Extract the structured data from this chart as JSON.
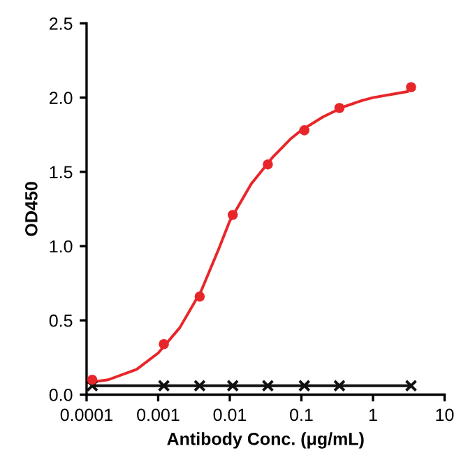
{
  "chart_data": {
    "type": "scatter",
    "xlabel": "Antibody Conc. (μg/mL)",
    "ylabel": "OD450",
    "log": "x",
    "xlim": [
      0.0001,
      10
    ],
    "xticks": [
      0.0001,
      0.001,
      0.01,
      0.1,
      1,
      10
    ],
    "ylim": [
      0,
      2.5
    ],
    "yticks": [
      {
        "value": 0,
        "label": "0.0"
      },
      0.5,
      {
        "value": 1,
        "label": "1.0"
      },
      1.5,
      {
        "value": 2,
        "label": "2.0"
      },
      2.5
    ],
    "grid": false,
    "legend": false,
    "series": [
      {
        "type": "line",
        "color": "#e8262a",
        "marker": "none",
        "x": [
          0.0001,
          0.0002,
          0.0005,
          0.001,
          0.002,
          0.004,
          0.007,
          0.01,
          0.02,
          0.04,
          0.07,
          0.1,
          0.2,
          0.4,
          0.7,
          1,
          3
        ],
        "values": [
          0.08,
          0.1,
          0.17,
          0.28,
          0.45,
          0.7,
          0.98,
          1.17,
          1.42,
          1.6,
          1.72,
          1.78,
          1.87,
          1.94,
          1.98,
          2.0,
          2.04
        ]
      },
      {
        "color": "#e8262a",
        "marker": "circle",
        "x": [
          0.00012,
          0.0012,
          0.0038,
          0.011,
          0.034,
          0.11,
          0.34,
          3.4
        ],
        "values": [
          0.1,
          0.34,
          0.66,
          1.21,
          1.55,
          1.78,
          1.93,
          2.07
        ]
      },
      {
        "type": "line",
        "color": "#111111",
        "marker": "cross",
        "x": [
          0.00012,
          0.0012,
          0.0038,
          0.011,
          0.034,
          0.11,
          0.34,
          3.4
        ],
        "values": [
          0.06,
          0.06,
          0.06,
          0.06,
          0.06,
          0.06,
          0.06,
          0.06
        ]
      }
    ]
  }
}
